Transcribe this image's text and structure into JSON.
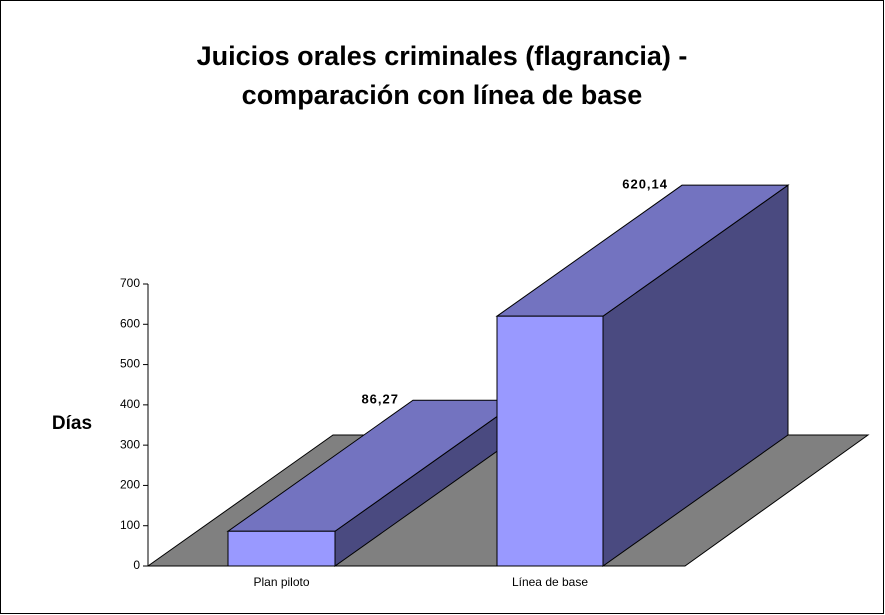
{
  "chart_data": {
    "type": "bar3d",
    "title": [
      "Juicios orales criminales (flagrancia) -",
      "comparación con línea de base"
    ],
    "ylabel": "Días",
    "categories": [
      "Plan piloto",
      "Línea de base"
    ],
    "values": [
      86.27,
      620.14
    ],
    "value_labels": [
      "86,27",
      "620,14"
    ],
    "color": "#9999ff",
    "top_color": "#7373c0",
    "side_color": "#4a4a80",
    "floor_color": "#808080",
    "ylim": [
      0,
      700
    ],
    "yticks": [
      0,
      100,
      200,
      300,
      400,
      500,
      600,
      700
    ]
  }
}
